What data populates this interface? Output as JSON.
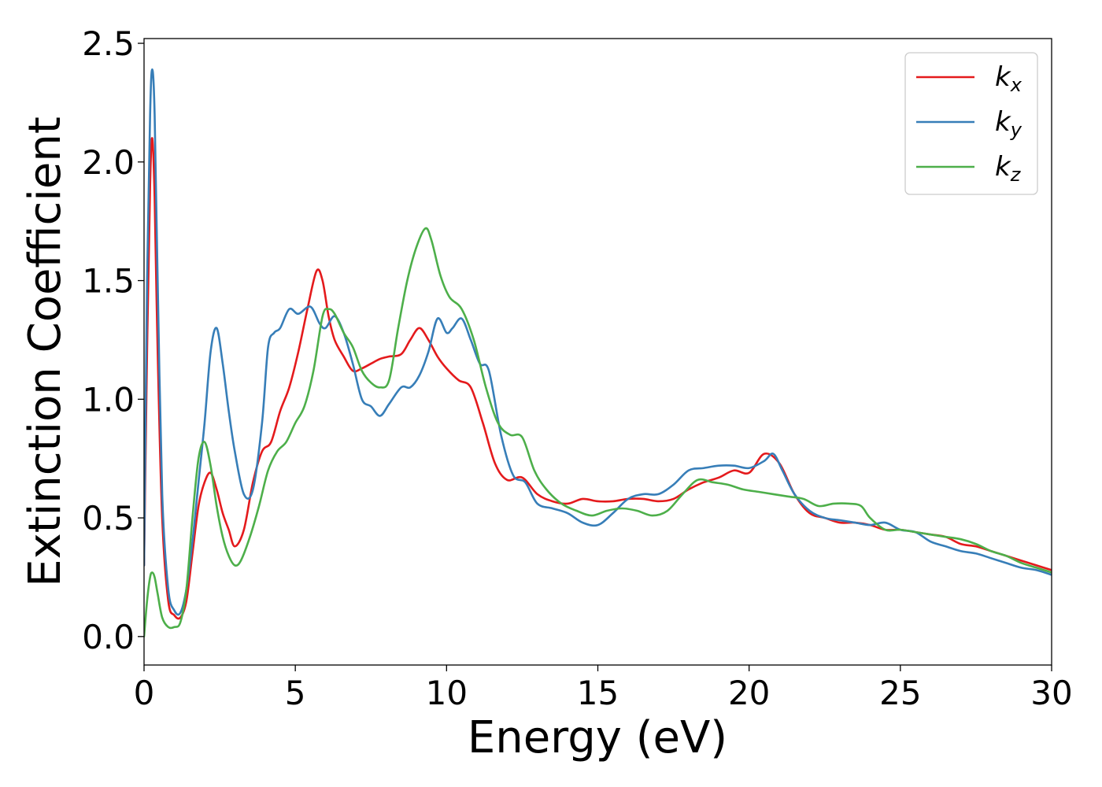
{
  "chart_data": {
    "type": "line",
    "title": "",
    "xlabel": "Energy (eV)",
    "ylabel": "Extinction Coefficient",
    "xlim": [
      0,
      30
    ],
    "ylim": [
      -0.12,
      2.52
    ],
    "xticks": [
      0,
      5,
      10,
      15,
      20,
      25,
      30
    ],
    "xtick_labels": [
      "0",
      "5",
      "10",
      "15",
      "20",
      "25",
      "30"
    ],
    "yticks": [
      0.0,
      0.5,
      1.0,
      1.5,
      2.0,
      2.5
    ],
    "ytick_labels": [
      "0.0",
      "0.5",
      "1.0",
      "1.5",
      "2.0",
      "2.5"
    ],
    "grid": false,
    "legend_position": "top-right",
    "series": [
      {
        "name": "k_x",
        "label_base": "k",
        "label_sub": "x",
        "color": "#e41a1c",
        "x": [
          0,
          0.1,
          0.2,
          0.27,
          0.35,
          0.45,
          0.6,
          0.8,
          1.0,
          1.2,
          1.4,
          1.6,
          1.8,
          2.0,
          2.2,
          2.4,
          2.6,
          2.8,
          3.0,
          3.3,
          3.6,
          3.9,
          4.2,
          4.5,
          4.8,
          5.1,
          5.4,
          5.7,
          5.9,
          6.1,
          6.3,
          6.6,
          6.9,
          7.2,
          7.5,
          7.8,
          8.1,
          8.5,
          8.8,
          9.1,
          9.4,
          9.7,
          10.0,
          10.4,
          10.8,
          11.2,
          11.6,
          12.0,
          12.5,
          13.0,
          13.5,
          14.0,
          14.5,
          15.0,
          15.5,
          16.0,
          16.5,
          17.0,
          17.5,
          18.0,
          18.5,
          19.0,
          19.5,
          20.0,
          20.5,
          21.0,
          21.5,
          22.0,
          22.5,
          23.0,
          23.5,
          24.0,
          24.5,
          25.0,
          25.5,
          26.0,
          26.5,
          27.0,
          27.5,
          28.0,
          28.5,
          29.0,
          29.5,
          30.0
        ],
        "y": [
          0.3,
          1.2,
          1.9,
          2.1,
          1.85,
          1.2,
          0.5,
          0.15,
          0.09,
          0.08,
          0.15,
          0.35,
          0.55,
          0.65,
          0.69,
          0.62,
          0.52,
          0.45,
          0.38,
          0.45,
          0.65,
          0.78,
          0.82,
          0.95,
          1.05,
          1.2,
          1.38,
          1.54,
          1.5,
          1.35,
          1.25,
          1.18,
          1.12,
          1.13,
          1.15,
          1.17,
          1.18,
          1.19,
          1.25,
          1.3,
          1.25,
          1.18,
          1.13,
          1.08,
          1.05,
          0.9,
          0.73,
          0.66,
          0.67,
          0.6,
          0.57,
          0.56,
          0.58,
          0.57,
          0.57,
          0.58,
          0.58,
          0.57,
          0.58,
          0.62,
          0.65,
          0.67,
          0.7,
          0.69,
          0.77,
          0.73,
          0.6,
          0.52,
          0.5,
          0.48,
          0.48,
          0.47,
          0.45,
          0.45,
          0.44,
          0.43,
          0.42,
          0.39,
          0.38,
          0.36,
          0.34,
          0.32,
          0.3,
          0.28
        ]
      },
      {
        "name": "k_y",
        "label_base": "k",
        "label_sub": "y",
        "color": "#377eb8",
        "x": [
          0,
          0.1,
          0.2,
          0.27,
          0.35,
          0.45,
          0.6,
          0.8,
          1.0,
          1.2,
          1.4,
          1.6,
          1.8,
          2.0,
          2.2,
          2.4,
          2.6,
          2.8,
          3.0,
          3.3,
          3.6,
          3.9,
          4.1,
          4.3,
          4.5,
          4.8,
          5.1,
          5.5,
          5.8,
          6.0,
          6.3,
          6.6,
          6.9,
          7.2,
          7.5,
          7.8,
          8.1,
          8.5,
          8.8,
          9.1,
          9.4,
          9.7,
          10.0,
          10.2,
          10.5,
          10.8,
          11.1,
          11.4,
          11.8,
          12.2,
          12.6,
          13.0,
          13.5,
          14.0,
          14.5,
          15.0,
          15.5,
          16.0,
          16.5,
          17.0,
          17.5,
          18.0,
          18.5,
          19.0,
          19.5,
          20.0,
          20.5,
          20.8,
          21.1,
          21.5,
          22.0,
          22.5,
          23.0,
          23.5,
          24.0,
          24.5,
          25.0,
          25.5,
          26.0,
          26.5,
          27.0,
          27.5,
          28.0,
          28.5,
          29.0,
          29.5,
          30.0
        ],
        "y": [
          0.3,
          1.5,
          2.2,
          2.39,
          2.2,
          1.5,
          0.6,
          0.2,
          0.11,
          0.1,
          0.2,
          0.4,
          0.65,
          0.9,
          1.2,
          1.3,
          1.15,
          0.95,
          0.78,
          0.6,
          0.62,
          0.9,
          1.22,
          1.28,
          1.3,
          1.38,
          1.36,
          1.39,
          1.32,
          1.3,
          1.35,
          1.28,
          1.15,
          1.0,
          0.97,
          0.93,
          0.98,
          1.05,
          1.05,
          1.1,
          1.2,
          1.34,
          1.28,
          1.3,
          1.34,
          1.25,
          1.15,
          1.12,
          0.85,
          0.68,
          0.65,
          0.56,
          0.54,
          0.52,
          0.48,
          0.47,
          0.52,
          0.58,
          0.6,
          0.6,
          0.64,
          0.7,
          0.71,
          0.72,
          0.72,
          0.71,
          0.74,
          0.77,
          0.7,
          0.6,
          0.53,
          0.5,
          0.49,
          0.48,
          0.47,
          0.48,
          0.45,
          0.44,
          0.4,
          0.38,
          0.36,
          0.35,
          0.33,
          0.31,
          0.29,
          0.28,
          0.26
        ]
      },
      {
        "name": "k_z",
        "label_base": "k",
        "label_sub": "z",
        "color": "#4daf4a",
        "x": [
          0,
          0.1,
          0.2,
          0.27,
          0.35,
          0.45,
          0.6,
          0.8,
          1.0,
          1.2,
          1.4,
          1.6,
          1.8,
          2.0,
          2.2,
          2.4,
          2.6,
          2.8,
          3.0,
          3.2,
          3.5,
          3.8,
          4.1,
          4.4,
          4.7,
          5.0,
          5.3,
          5.6,
          5.9,
          6.1,
          6.3,
          6.6,
          6.9,
          7.2,
          7.5,
          7.8,
          8.1,
          8.4,
          8.7,
          9.0,
          9.3,
          9.5,
          9.8,
          10.1,
          10.5,
          10.9,
          11.3,
          11.7,
          12.1,
          12.5,
          12.9,
          13.3,
          13.8,
          14.3,
          14.8,
          15.3,
          15.8,
          16.3,
          16.8,
          17.3,
          17.8,
          18.3,
          18.8,
          19.3,
          19.8,
          20.3,
          20.8,
          21.3,
          21.8,
          22.3,
          22.8,
          23.3,
          23.7,
          24.0,
          24.5,
          25.0,
          25.5,
          26.0,
          26.5,
          27.0,
          27.5,
          28.0,
          28.5,
          29.0,
          29.5,
          30.0
        ],
        "y": [
          0.0,
          0.15,
          0.25,
          0.27,
          0.25,
          0.18,
          0.08,
          0.04,
          0.04,
          0.06,
          0.2,
          0.5,
          0.75,
          0.82,
          0.72,
          0.55,
          0.42,
          0.34,
          0.3,
          0.32,
          0.42,
          0.55,
          0.7,
          0.78,
          0.82,
          0.9,
          0.97,
          1.12,
          1.35,
          1.38,
          1.36,
          1.28,
          1.22,
          1.12,
          1.07,
          1.05,
          1.08,
          1.3,
          1.5,
          1.64,
          1.72,
          1.67,
          1.52,
          1.43,
          1.38,
          1.25,
          1.05,
          0.9,
          0.85,
          0.84,
          0.7,
          0.62,
          0.56,
          0.53,
          0.51,
          0.53,
          0.54,
          0.53,
          0.51,
          0.53,
          0.6,
          0.66,
          0.65,
          0.64,
          0.62,
          0.61,
          0.6,
          0.59,
          0.58,
          0.55,
          0.56,
          0.56,
          0.55,
          0.5,
          0.45,
          0.45,
          0.44,
          0.43,
          0.42,
          0.41,
          0.39,
          0.36,
          0.34,
          0.31,
          0.29,
          0.27
        ]
      }
    ]
  }
}
